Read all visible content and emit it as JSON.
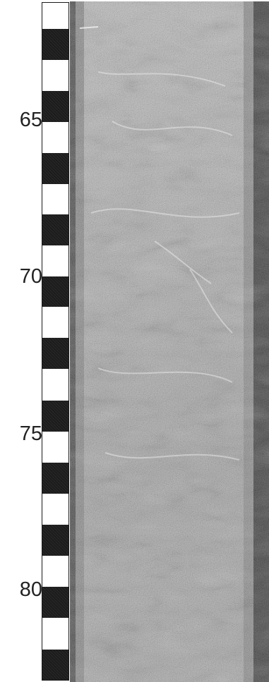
{
  "scale": {
    "depth_labels": [
      "65",
      "70",
      "75",
      "80"
    ],
    "segments": 22
  },
  "core_image": {
    "description_icon": "sediment-core-photo",
    "colors": {
      "liner_dark": "#3a3a3a",
      "liner_mid": "#6f6f6f",
      "sediment_base": "#9c9c9c",
      "sediment_light": "#c4c4c4"
    }
  }
}
